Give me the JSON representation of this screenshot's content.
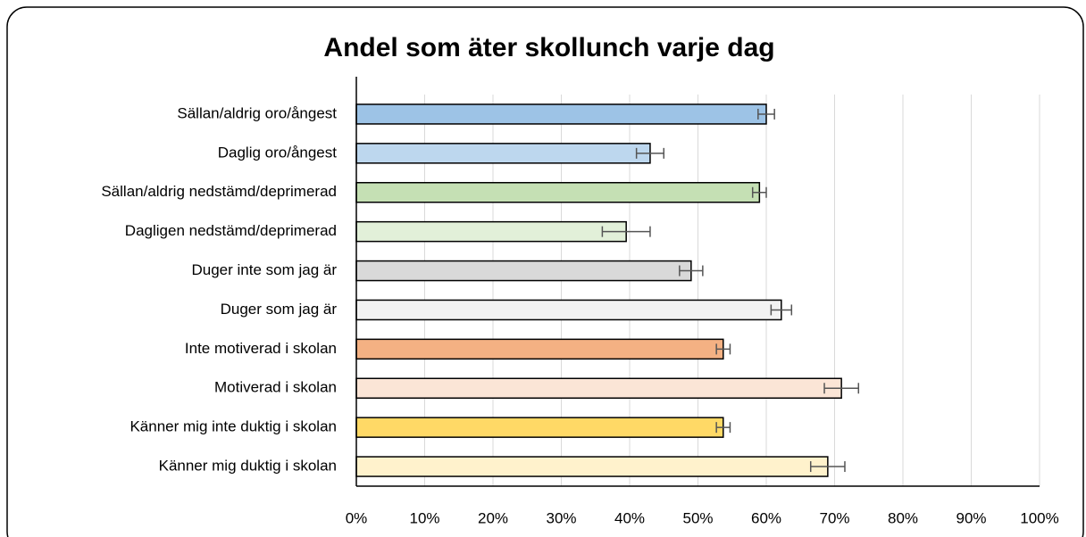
{
  "chart_data": {
    "type": "bar",
    "orientation": "horizontal",
    "title": "Andel som äter skollunch varje dag",
    "categories": [
      "Sällan/aldrig oro/ångest",
      "Daglig oro/ångest",
      "Sällan/aldrig nedstämd/deprimerad",
      "Dagligen nedstämd/deprimerad",
      "Duger inte som jag är",
      "Duger som jag är",
      "Inte motiverad i skolan",
      "Motiverad i skolan",
      "Känner mig inte duktig i skolan",
      "Känner mig duktig i skolan"
    ],
    "values": [
      60,
      43,
      59,
      39.5,
      49,
      62.2,
      53.7,
      71,
      53.7,
      69
    ],
    "errors": [
      1.2,
      2,
      1,
      3.5,
      1.7,
      1.5,
      1,
      2.5,
      1,
      2.5
    ],
    "colors": [
      "#9dc3e6",
      "#bdd7ee",
      "#c5e0b4",
      "#e2f0d9",
      "#d9d9d9",
      "#f2f2f2",
      "#f4b183",
      "#fbe5d6",
      "#ffd966",
      "#fff2cc"
    ],
    "xlim": [
      0,
      100
    ],
    "xticks": [
      {
        "value": 0,
        "label": "0%"
      },
      {
        "value": 10,
        "label": "10%"
      },
      {
        "value": 20,
        "label": "20%"
      },
      {
        "value": 30,
        "label": "30%"
      },
      {
        "value": 40,
        "label": "40%"
      },
      {
        "value": 50,
        "label": "50%"
      },
      {
        "value": 60,
        "label": "60%"
      },
      {
        "value": 70,
        "label": "70%"
      },
      {
        "value": 80,
        "label": "80%"
      },
      {
        "value": 90,
        "label": "90%"
      },
      {
        "value": 100,
        "label": "100%"
      }
    ],
    "grid": true
  }
}
